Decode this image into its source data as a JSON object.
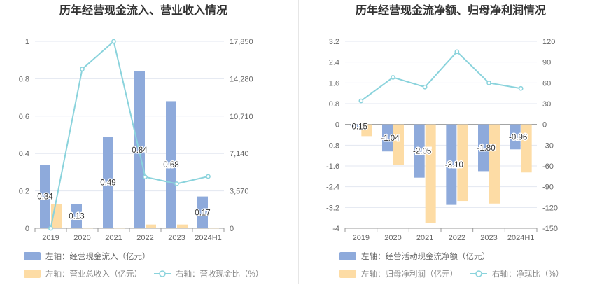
{
  "colors": {
    "inflow_bar": "#8eaadb",
    "revenue_bar": "#fddca5",
    "ratio_line": "#8ad3dc",
    "grid": "#e3e7f1",
    "axis": "#999999"
  },
  "chart_data": [
    {
      "type": "bar",
      "title": "历年经营现金流入、营业收入情况",
      "categories": [
        "2019",
        "2020",
        "2021",
        "2022",
        "2023",
        "2024H1"
      ],
      "left_axis": {
        "ticks": [
          "0",
          "0.2",
          "0.4",
          "0.6",
          "0.8",
          "1"
        ],
        "ylim": [
          0,
          1
        ]
      },
      "right_axis": {
        "ticks": [
          "0",
          "3,570",
          "7,140",
          "10,710",
          "14,280",
          "17,850"
        ],
        "ylim": [
          0,
          17850
        ]
      },
      "series": [
        {
          "name": "左轴：经营现金流入（亿元）",
          "axis": "left",
          "kind": "bar",
          "values": [
            0.34,
            0.13,
            0.49,
            0.84,
            0.68,
            0.17
          ],
          "labels": [
            "0.34",
            "0.13",
            "0.49",
            "0.84",
            "0.68",
            "0.17"
          ]
        },
        {
          "name": "左轴：营业总收入（亿元）",
          "axis": "left",
          "kind": "bar",
          "values": [
            0.13,
            0.001,
            0.001,
            0.02,
            0.02,
            0.001
          ]
        },
        {
          "name": "右轴：营收现金比（%）",
          "axis": "right",
          "kind": "line",
          "values": [
            0,
            15200,
            17850,
            4900,
            4250,
            4950
          ]
        }
      ],
      "grid": true,
      "legend_position": "bottom"
    },
    {
      "type": "bar",
      "title": "历年经营现金流净额、归母净利润情况",
      "categories": [
        "2019",
        "2020",
        "2021",
        "2022",
        "2023",
        "2024H1"
      ],
      "left_axis": {
        "ticks": [
          "3.2",
          "2.4",
          "1.6",
          "0.8",
          "0",
          "-0.8",
          "-1.6",
          "-2.4",
          "-3.2",
          "-4"
        ],
        "ylim": [
          -4,
          3.2
        ]
      },
      "right_axis": {
        "ticks": [
          "120",
          "90",
          "60",
          "30",
          "0",
          "-30",
          "-60",
          "-90",
          "-120",
          "-150"
        ],
        "ylim": [
          -150,
          120
        ]
      },
      "series": [
        {
          "name": "左轴：经营活动现金流净额（亿元）",
          "axis": "left",
          "kind": "bar",
          "values": [
            -0.15,
            -1.04,
            -2.05,
            -3.1,
            -1.8,
            -0.96
          ],
          "labels": [
            "-0.15",
            "-1.04",
            "-2.05",
            "-3.10",
            "-1.80",
            "-0.96"
          ]
        },
        {
          "name": "左轴：归母净利润（亿元）",
          "axis": "left",
          "kind": "bar",
          "values": [
            -0.45,
            -1.55,
            -3.8,
            -2.95,
            -3.05,
            -1.85
          ]
        },
        {
          "name": "右轴：净现比（%）",
          "axis": "right",
          "kind": "line",
          "values": [
            34,
            68,
            54,
            105,
            60,
            52
          ]
        }
      ],
      "grid": true,
      "legend_position": "bottom"
    }
  ]
}
